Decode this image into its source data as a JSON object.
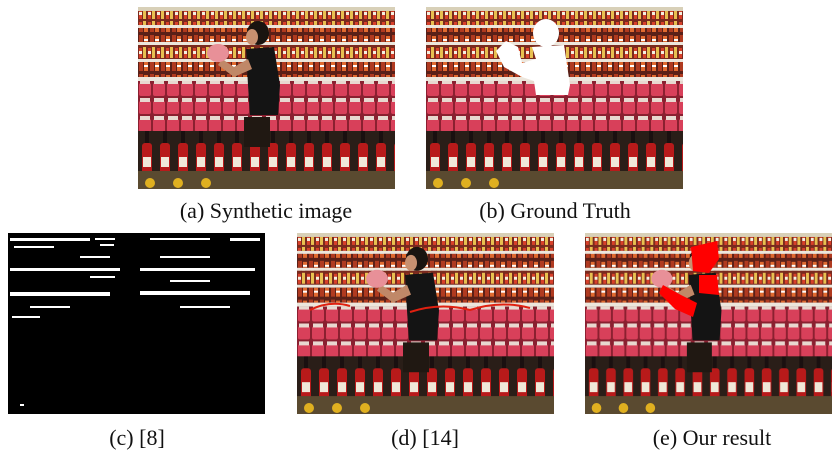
{
  "figure": {
    "panels": [
      {
        "caption": "(a) Synthetic image"
      },
      {
        "caption": "(b) Ground Truth"
      },
      {
        "caption": "(c) [8]"
      },
      {
        "caption": "(d) [14]"
      },
      {
        "caption": "(e) Our result"
      }
    ]
  }
}
